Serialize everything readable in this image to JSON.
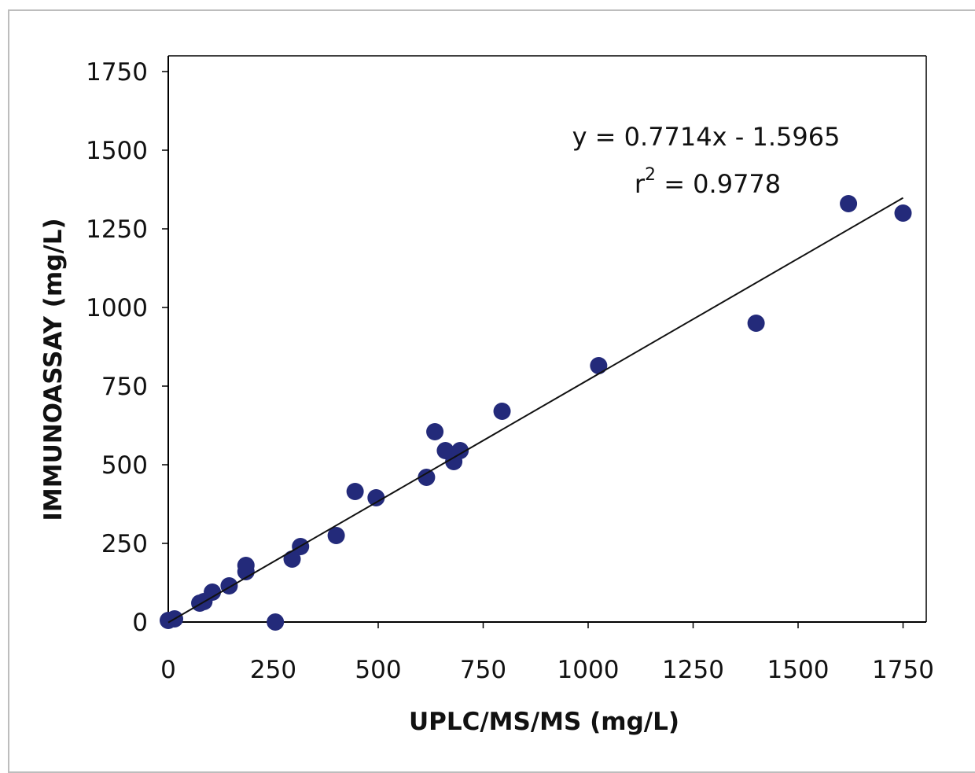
{
  "chart_data": {
    "type": "scatter",
    "xlabel": "UPLC/MS/MS (mg/L)",
    "ylabel": "IMMUNOASSAY (mg/L)",
    "xlim": [
      0,
      1800
    ],
    "ylim": [
      0,
      1750
    ],
    "xticks": [
      "0",
      "250",
      "500",
      "750",
      "1000",
      "1250",
      "1500",
      "1750"
    ],
    "yticks": [
      "0",
      "250",
      "500",
      "750",
      "1000",
      "1250",
      "1500",
      "1750"
    ],
    "grid": false,
    "legend": "none",
    "marker_color": "#232a7a",
    "line_color": "#111111",
    "series": [
      {
        "values": [
          [
            0,
            5
          ],
          [
            15,
            10
          ],
          [
            75,
            60
          ],
          [
            85,
            65
          ],
          [
            105,
            95
          ],
          [
            145,
            115
          ],
          [
            185,
            160
          ],
          [
            185,
            180
          ],
          [
            255,
            0
          ],
          [
            295,
            200
          ],
          [
            315,
            240
          ],
          [
            400,
            275
          ],
          [
            445,
            415
          ],
          [
            495,
            395
          ],
          [
            615,
            460
          ],
          [
            635,
            605
          ],
          [
            660,
            545
          ],
          [
            680,
            510
          ],
          [
            695,
            545
          ],
          [
            795,
            670
          ],
          [
            1025,
            815
          ],
          [
            1400,
            950
          ],
          [
            1620,
            1330
          ],
          [
            1750,
            1300
          ]
        ]
      }
    ],
    "trendline": {
      "slope": 0.7714,
      "intercept": -1.5965,
      "x_range": [
        0,
        1750
      ]
    },
    "annotations": {
      "equation": "y = 0.7714x - 1.5965",
      "r2_base": "r",
      "r2_exp": "2",
      "r2_rest": " = 0.9778"
    }
  }
}
